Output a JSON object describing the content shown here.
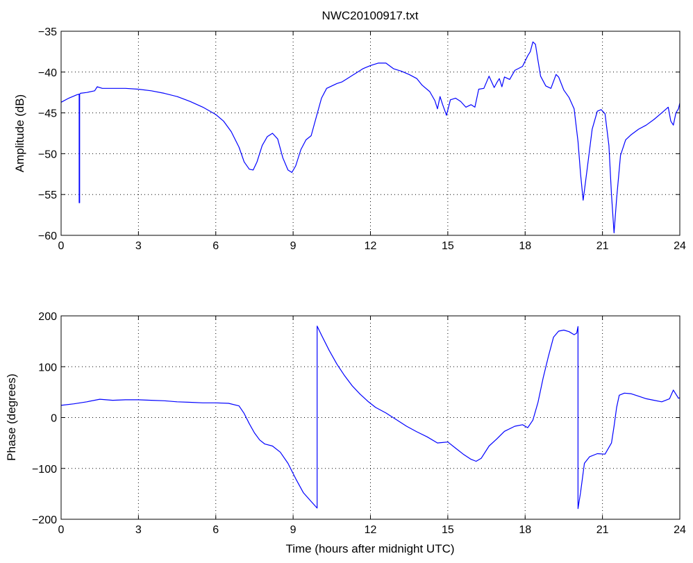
{
  "chart_data": [
    {
      "type": "line",
      "title": "NWC20100917.txt",
      "xlabel": "",
      "ylabel": "Amplitude (dB)",
      "xlim": [
        0,
        24
      ],
      "ylim": [
        -60,
        -35
      ],
      "xticks": [
        0,
        3,
        6,
        9,
        12,
        15,
        18,
        21,
        24
      ],
      "yticks": [
        -60,
        -55,
        -50,
        -45,
        -40,
        -35
      ],
      "xtick_labels": [
        "0",
        "3",
        "6",
        "9",
        "12",
        "15",
        "18",
        "21",
        "24"
      ],
      "ytick_labels": [
        "−60",
        "−55",
        "−50",
        "−45",
        "−40",
        "−35"
      ],
      "grid": true,
      "series": [
        {
          "color": "#0000ff",
          "x": [
            0,
            0.3,
            0.6,
            0.7,
            0.7,
            0.72,
            0.72,
            0.75,
            1.0,
            1.3,
            1.4,
            1.6,
            2.0,
            2.5,
            3.0,
            3.5,
            4.0,
            4.5,
            5.0,
            5.5,
            6.0,
            6.3,
            6.6,
            6.9,
            7.1,
            7.3,
            7.45,
            7.6,
            7.8,
            8.0,
            8.2,
            8.4,
            8.6,
            8.8,
            8.95,
            9.1,
            9.3,
            9.5,
            9.7,
            9.9,
            10.1,
            10.3,
            10.5,
            10.7,
            10.9,
            11.1,
            11.4,
            11.7,
            12.0,
            12.3,
            12.6,
            12.9,
            13.2,
            13.5,
            13.8,
            14.0,
            14.3,
            14.5,
            14.6,
            14.7,
            14.8,
            14.95,
            15.1,
            15.3,
            15.5,
            15.7,
            15.9,
            16.05,
            16.2,
            16.4,
            16.6,
            16.8,
            16.9,
            17.0,
            17.1,
            17.2,
            17.4,
            17.6,
            17.9,
            18.1,
            18.2,
            18.3,
            18.4,
            18.5,
            18.6,
            18.8,
            19.0,
            19.2,
            19.3,
            19.5,
            19.7,
            19.9,
            20.05,
            20.15,
            20.25,
            20.4,
            20.6,
            20.8,
            20.95,
            21.1,
            21.25,
            21.35,
            21.45,
            21.55,
            21.7,
            21.9,
            22.1,
            22.4,
            22.7,
            23.0,
            23.3,
            23.55,
            23.65,
            23.75,
            23.85,
            23.95,
            24.0
          ],
          "y": [
            -43.7,
            -43.2,
            -42.8,
            -42.7,
            -56.0,
            -56.0,
            -42.7,
            -42.6,
            -42.5,
            -42.3,
            -41.8,
            -42.0,
            -42.0,
            -42.0,
            -42.1,
            -42.3,
            -42.6,
            -43.0,
            -43.6,
            -44.3,
            -45.2,
            -46.0,
            -47.3,
            -49.2,
            -51.0,
            -51.9,
            -52.0,
            -51.0,
            -49.0,
            -47.9,
            -47.5,
            -48.2,
            -50.5,
            -52.0,
            -52.3,
            -51.5,
            -49.5,
            -48.3,
            -47.8,
            -45.5,
            -43.2,
            -42.0,
            -41.7,
            -41.4,
            -41.2,
            -40.8,
            -40.2,
            -39.6,
            -39.2,
            -38.9,
            -38.9,
            -39.6,
            -39.9,
            -40.3,
            -40.8,
            -41.6,
            -42.4,
            -43.5,
            -44.5,
            -43.0,
            -44.0,
            -45.3,
            -43.4,
            -43.2,
            -43.6,
            -44.3,
            -44.0,
            -44.3,
            -42.1,
            -42.0,
            -40.5,
            -41.9,
            -41.3,
            -40.8,
            -41.8,
            -40.6,
            -40.9,
            -39.8,
            -39.3,
            -38.0,
            -37.5,
            -36.3,
            -36.6,
            -38.6,
            -40.5,
            -41.7,
            -42.0,
            -40.3,
            -40.6,
            -42.2,
            -43.1,
            -44.5,
            -48.5,
            -52.5,
            -55.7,
            -52.0,
            -47.0,
            -44.8,
            -44.6,
            -45.1,
            -49.0,
            -55.0,
            -59.7,
            -55.5,
            -50.2,
            -48.3,
            -47.7,
            -47.0,
            -46.5,
            -45.8,
            -45.0,
            -44.3,
            -46.0,
            -46.5,
            -45.0,
            -44.5,
            -43.8
          ]
        }
      ]
    },
    {
      "type": "line",
      "title": "",
      "xlabel": "Time (hours after midnight UTC)",
      "ylabel": "Phase (degrees)",
      "xlim": [
        0,
        24
      ],
      "ylim": [
        -200,
        200
      ],
      "xticks": [
        0,
        3,
        6,
        9,
        12,
        15,
        18,
        21,
        24
      ],
      "yticks": [
        -200,
        -100,
        0,
        100,
        200
      ],
      "xtick_labels": [
        "0",
        "3",
        "6",
        "9",
        "12",
        "15",
        "18",
        "21",
        "24"
      ],
      "ytick_labels": [
        "−200",
        "−100",
        "0",
        "100",
        "200"
      ],
      "grid": true,
      "series": [
        {
          "color": "#0000ff",
          "x": [
            0,
            0.5,
            1.0,
            1.5,
            2.0,
            2.5,
            3.0,
            3.5,
            4.0,
            4.5,
            5.0,
            5.5,
            6.0,
            6.5,
            6.9,
            7.1,
            7.3,
            7.5,
            7.7,
            7.9,
            8.2,
            8.5,
            8.8,
            9.1,
            9.4,
            9.7,
            9.93,
            9.93,
            10.1,
            10.4,
            10.7,
            11.0,
            11.3,
            11.6,
            11.9,
            12.2,
            12.6,
            13.0,
            13.4,
            13.8,
            14.2,
            14.6,
            15.0,
            15.3,
            15.6,
            15.9,
            16.1,
            16.3,
            16.6,
            16.9,
            17.2,
            17.6,
            17.9,
            18.1,
            18.3,
            18.5,
            18.7,
            18.9,
            19.1,
            19.3,
            19.5,
            19.7,
            19.9,
            20.0,
            20.05,
            20.05,
            20.15,
            20.3,
            20.5,
            20.8,
            21.1,
            21.35,
            21.45,
            21.55,
            21.65,
            21.85,
            22.1,
            22.4,
            22.7,
            23.0,
            23.3,
            23.6,
            23.75,
            23.85,
            23.95,
            24.0
          ],
          "y": [
            24,
            27,
            31,
            36,
            34,
            35,
            35,
            34,
            33,
            31,
            30,
            29,
            29,
            28,
            23,
            8,
            -12,
            -30,
            -44,
            -52,
            -56,
            -68,
            -90,
            -120,
            -148,
            -165,
            -178,
            180,
            162,
            132,
            105,
            82,
            62,
            46,
            32,
            20,
            9,
            -4,
            -17,
            -28,
            -38,
            -50,
            -48,
            -60,
            -72,
            -82,
            -86,
            -80,
            -56,
            -42,
            -27,
            -17,
            -14,
            -20,
            -5,
            30,
            78,
            120,
            158,
            170,
            172,
            169,
            163,
            166,
            179,
            -179,
            -147,
            -90,
            -77,
            -71,
            -72,
            -50,
            -17,
            20,
            44,
            48,
            47,
            42,
            37,
            34,
            31,
            37,
            54,
            46,
            38,
            39
          ]
        }
      ]
    }
  ]
}
